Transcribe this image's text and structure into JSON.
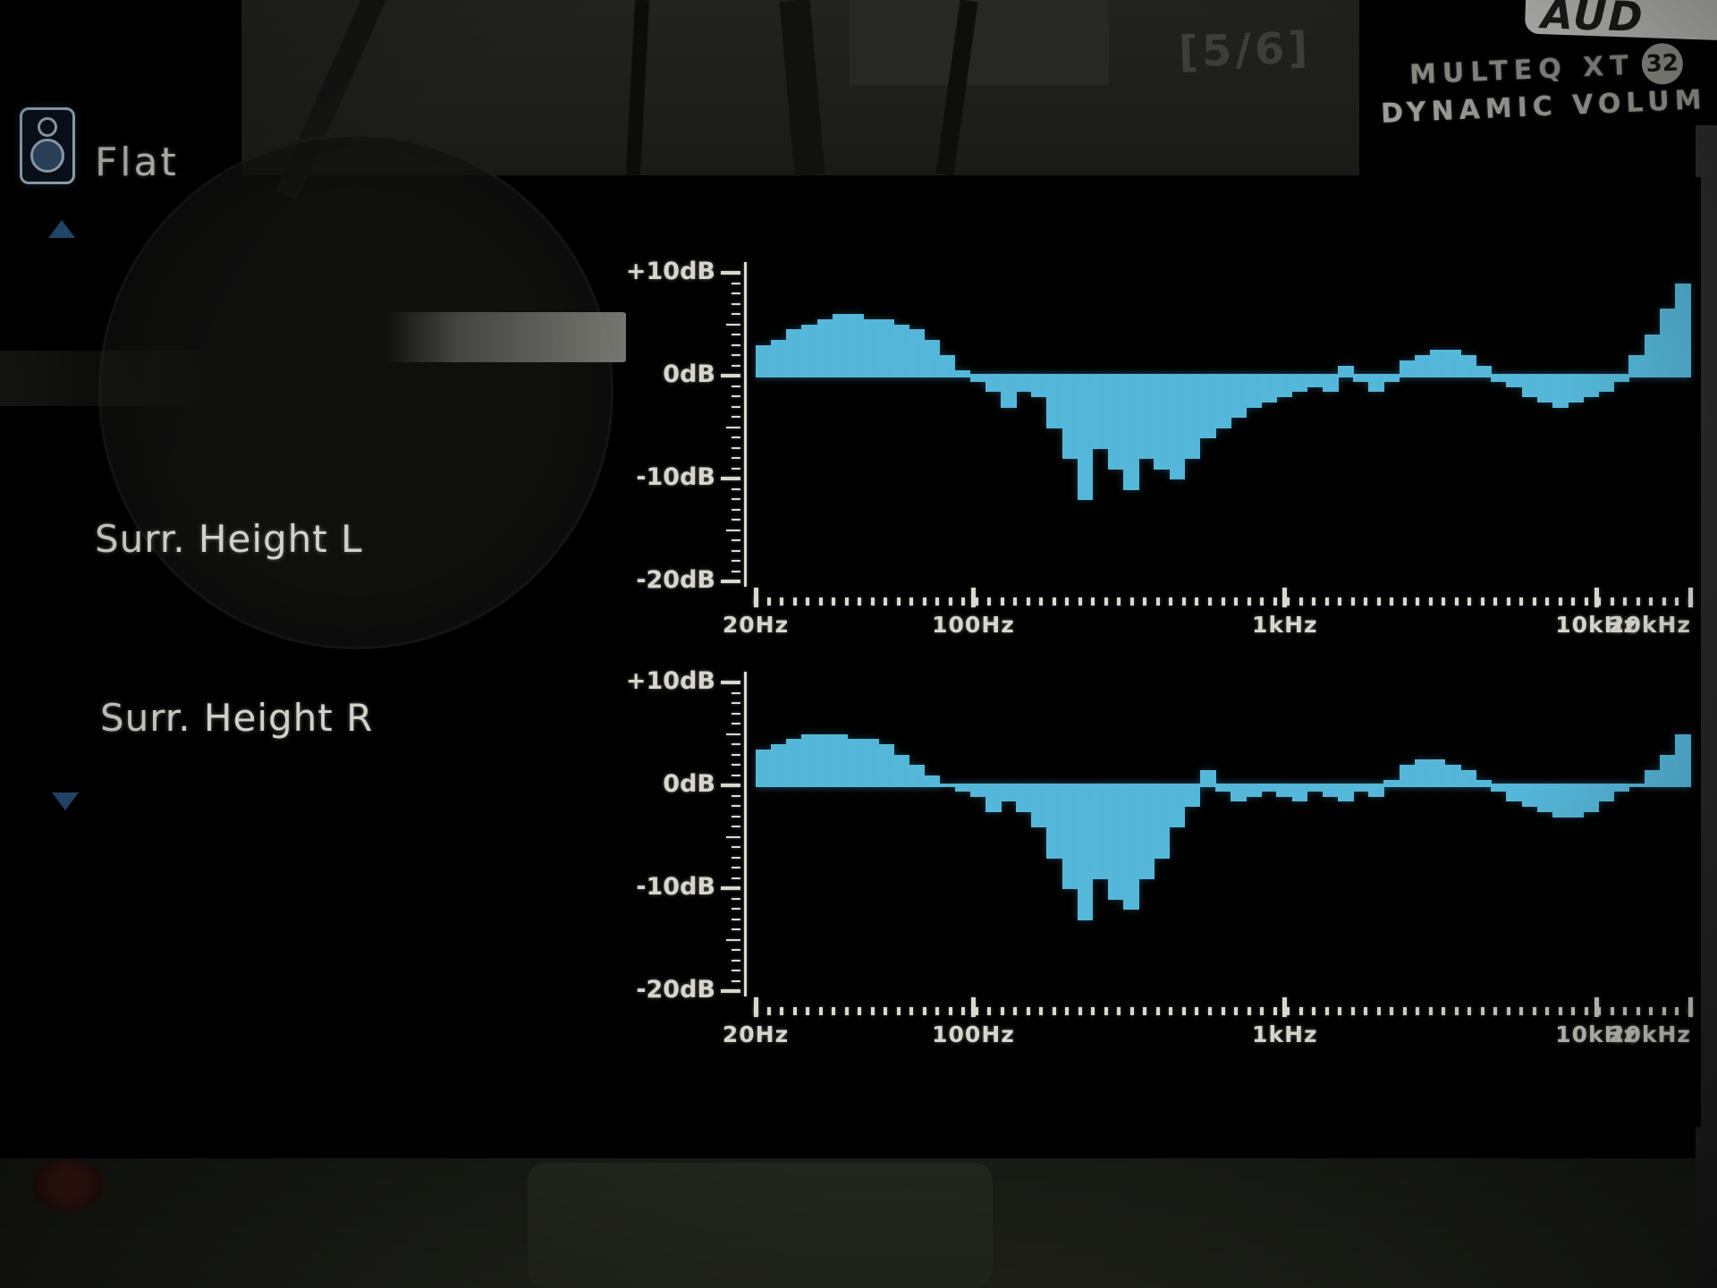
{
  "header": {
    "preset_label": "Flat",
    "page_indicator": "[5/6]",
    "logo_text": "AUD",
    "brand_line1": "MULTEQ XT",
    "brand_badge": "32",
    "brand_line2": "DYNAMIC VOLUM"
  },
  "sidebar": {
    "channels": [
      {
        "label": "Surr. Height L"
      },
      {
        "label": "Surr. Height R"
      }
    ]
  },
  "colors": {
    "curve": "#55b7d9",
    "axis": "#d8d8cf",
    "text": "#d2d2cb",
    "arrow_blue": "#2f608f"
  },
  "chart_data": [
    {
      "type": "area",
      "channel": "Surr. Height L",
      "x_scale": "log",
      "x_range_hz": [
        20,
        20000
      ],
      "ylim_db": [
        -20,
        10
      ],
      "grid": false,
      "x_ticks": [
        {
          "hz": 20,
          "label": "20Hz"
        },
        {
          "hz": 100,
          "label": "100Hz"
        },
        {
          "hz": 1000,
          "label": "1kHz"
        },
        {
          "hz": 10000,
          "label": "10kHz"
        },
        {
          "hz": 20000,
          "label": "20kHz"
        }
      ],
      "y_ticks": [
        {
          "db": 10,
          "label": "+10dB"
        },
        {
          "db": 0,
          "label": "0dB"
        },
        {
          "db": -10,
          "label": "-10dB"
        },
        {
          "db": -20,
          "label": "-20dB"
        }
      ],
      "bars_evenly_log_spaced": 61,
      "values_db": [
        3,
        3.5,
        4.5,
        5,
        5.5,
        6,
        6,
        5.5,
        5.5,
        5,
        4.5,
        3.5,
        2,
        0.5,
        -0.5,
        -1.5,
        -3,
        -1.5,
        -2,
        -5,
        -8,
        -12,
        -7,
        -9,
        -11,
        -8,
        -9,
        -10,
        -8,
        -6,
        -5,
        -4,
        -3,
        -2.5,
        -2,
        -1.5,
        -1,
        -1.5,
        1,
        -0.5,
        -1.5,
        -0.5,
        1.5,
        2,
        2.5,
        2.5,
        2,
        1,
        -0.5,
        -1,
        -2,
        -2.5,
        -3,
        -2.5,
        -2,
        -1.5,
        -0.5,
        2,
        4,
        6.5,
        9
      ]
    },
    {
      "type": "area",
      "channel": "Surr. Height R",
      "x_scale": "log",
      "x_range_hz": [
        20,
        20000
      ],
      "ylim_db": [
        -20,
        10
      ],
      "grid": false,
      "x_ticks": [
        {
          "hz": 20,
          "label": "20Hz"
        },
        {
          "hz": 100,
          "label": "100Hz"
        },
        {
          "hz": 1000,
          "label": "1kHz"
        },
        {
          "hz": 10000,
          "label": "10kHz"
        },
        {
          "hz": 20000,
          "label": "20kHz"
        }
      ],
      "y_ticks": [
        {
          "db": 10,
          "label": "+10dB"
        },
        {
          "db": 0,
          "label": "0dB"
        },
        {
          "db": -10,
          "label": "-10dB"
        },
        {
          "db": -20,
          "label": "-20dB"
        }
      ],
      "bars_evenly_log_spaced": 61,
      "values_db": [
        3.5,
        4,
        4.5,
        5,
        5,
        5,
        4.5,
        4.5,
        4,
        3,
        2,
        1,
        0,
        -0.5,
        -1,
        -2.5,
        -1.5,
        -2.5,
        -4,
        -7,
        -10,
        -13,
        -9,
        -11,
        -12,
        -9,
        -7,
        -4,
        -2,
        1.5,
        -0.5,
        -1.5,
        -1,
        -0.5,
        -1,
        -1.5,
        -0.5,
        -1,
        -1.5,
        -0.5,
        -1,
        0.5,
        2,
        2.5,
        2.5,
        2,
        1.5,
        0.5,
        -0.5,
        -1.5,
        -2,
        -2.5,
        -3,
        -3,
        -2.5,
        -1.5,
        -0.5,
        0,
        1.5,
        3,
        5
      ]
    }
  ]
}
